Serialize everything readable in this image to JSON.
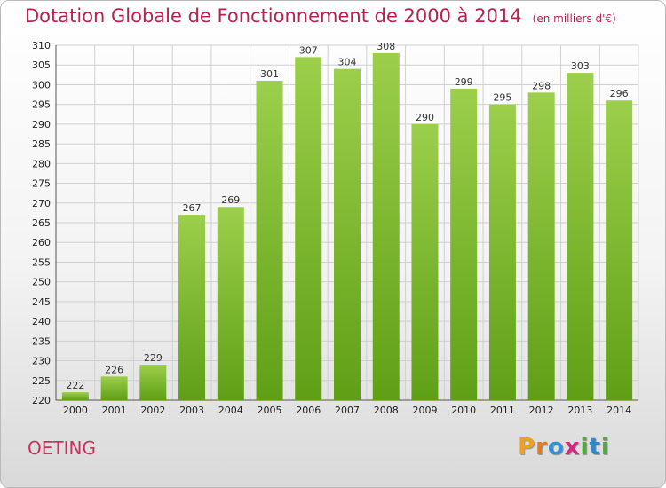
{
  "header": {
    "title": "Dotation Globale de Fonctionnement de 2000 à 2014",
    "unit": "(en milliers d'€)"
  },
  "footer": {
    "commune": "OETING",
    "logo": [
      "P",
      "r",
      "o",
      "x",
      "i",
      "t",
      "i"
    ]
  },
  "colors": {
    "bar_light": "#9ccf4b",
    "bar_dark": "#5f9f16",
    "title": "#b5234f",
    "grid": "#d0d0d0",
    "logo": [
      "#f0a020",
      "#e37b1b",
      "#3a8fd0",
      "#d02c7f",
      "#53a93f",
      "#2f86c9",
      "#53a93f"
    ]
  },
  "chart_data": {
    "type": "bar",
    "title": "Dotation Globale de Fonctionnement de 2000 à 2014",
    "subtitle": "(en milliers d'€)",
    "categories": [
      "2000",
      "2001",
      "2002",
      "2003",
      "2004",
      "2005",
      "2006",
      "2007",
      "2008",
      "2009",
      "2010",
      "2011",
      "2012",
      "2013",
      "2014"
    ],
    "values": [
      222,
      226,
      229,
      267,
      269,
      301,
      307,
      304,
      308,
      290,
      299,
      295,
      298,
      303,
      296
    ],
    "ylim": [
      220,
      310
    ],
    "ytick_step": 5,
    "grid": true,
    "legend": "none"
  }
}
